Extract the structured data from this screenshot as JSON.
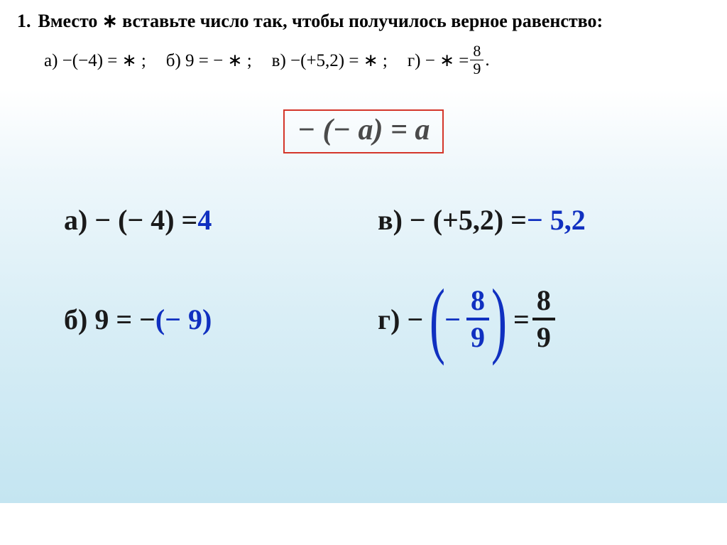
{
  "problem": {
    "number": "1.",
    "text": "Вместо ∗ вставьте число так, чтобы получилось верное равенство:",
    "options": {
      "a": "а) −(−4) = ∗ ;",
      "b": "б) 9 = − ∗ ;",
      "v": "в) −(+5,2) = ∗ ;",
      "g_prefix": "г) − ∗  = ",
      "g_frac_num": "8",
      "g_frac_den": "9",
      "g_suffix": "."
    }
  },
  "rule": {
    "text": "− (− a) = a"
  },
  "answers": {
    "a": {
      "label": "а)",
      "lhs": "− (− 4) = ",
      "ans": "4"
    },
    "b": {
      "label": "б)",
      "lhs": " 9 = − ",
      "ans": "(− 9)"
    },
    "v": {
      "label": "в)",
      "lhs": "− (+5,2) = ",
      "ans": "− 5,2"
    },
    "g": {
      "label": "г)",
      "minus_out": " − ",
      "inner_minus": "−",
      "frac_blue_num": "8",
      "frac_blue_den": "9",
      "equals": " = ",
      "frac_black_num": "8",
      "frac_black_den": "9"
    }
  },
  "colors": {
    "rule_border": "#d4362a",
    "rule_text": "#4a4a4a",
    "answer_blue": "#1030c0",
    "text_black": "#1a1a1a",
    "bg_grad_top": "#ffffff",
    "bg_grad_bottom": "#c4e5f1"
  }
}
